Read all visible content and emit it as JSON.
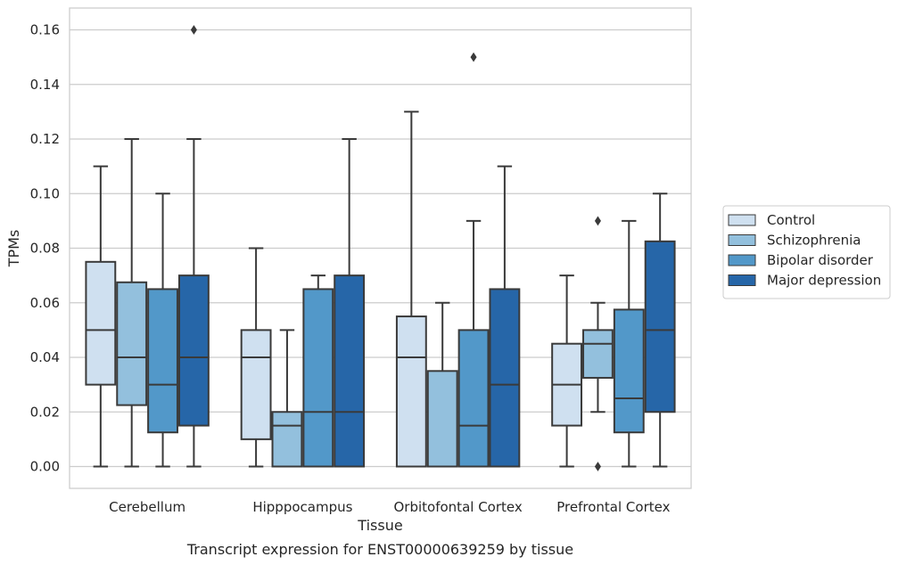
{
  "chart_data": {
    "type": "box",
    "xlabel": "Tissue",
    "ylabel": "TPMs",
    "caption": "Transcript expression for ENST00000639259 by tissue",
    "ylim": [
      -0.008,
      0.168
    ],
    "yticks": [
      "0.00",
      "0.02",
      "0.04",
      "0.06",
      "0.08",
      "0.10",
      "0.12",
      "0.14",
      "0.16"
    ],
    "ytick_values": [
      0,
      0.02,
      0.04,
      0.06,
      0.08,
      0.1,
      0.12,
      0.14,
      0.16
    ],
    "grid": "horizontal",
    "legend_position": "right-outside",
    "categories": [
      "Cerebellum",
      "Hipppocampus",
      "Orbitofontal Cortex",
      "Prefrontal Cortex"
    ],
    "series": [
      {
        "name": "Control",
        "color": "#cfe0f0",
        "boxes": [
          {
            "whislo": 0.0,
            "q1": 0.03,
            "med": 0.05,
            "q3": 0.075,
            "whishi": 0.11,
            "fliers": []
          },
          {
            "whislo": 0.0,
            "q1": 0.01,
            "med": 0.04,
            "q3": 0.05,
            "whishi": 0.08,
            "fliers": []
          },
          {
            "whislo": 0.0,
            "q1": 0.0,
            "med": 0.04,
            "q3": 0.055,
            "whishi": 0.13,
            "fliers": []
          },
          {
            "whislo": 0.0,
            "q1": 0.015,
            "med": 0.03,
            "q3": 0.045,
            "whishi": 0.07,
            "fliers": []
          }
        ]
      },
      {
        "name": "Schizophrenia",
        "color": "#93c0dd",
        "boxes": [
          {
            "whislo": 0.0,
            "q1": 0.0225,
            "med": 0.04,
            "q3": 0.0675,
            "whishi": 0.12,
            "fliers": []
          },
          {
            "whislo": 0.0,
            "q1": 0.0,
            "med": 0.015,
            "q3": 0.02,
            "whishi": 0.05,
            "fliers": []
          },
          {
            "whislo": 0.0,
            "q1": 0.0,
            "med": 0.0,
            "q3": 0.035,
            "whishi": 0.06,
            "fliers": []
          },
          {
            "whislo": 0.02,
            "q1": 0.0325,
            "med": 0.045,
            "q3": 0.05,
            "whishi": 0.06,
            "fliers": [
              0.0,
              0.09
            ]
          }
        ]
      },
      {
        "name": "Bipolar disorder",
        "color": "#5298c9",
        "boxes": [
          {
            "whislo": 0.0,
            "q1": 0.0125,
            "med": 0.03,
            "q3": 0.065,
            "whishi": 0.1,
            "fliers": []
          },
          {
            "whislo": 0.0,
            "q1": 0.0,
            "med": 0.02,
            "q3": 0.065,
            "whishi": 0.07,
            "fliers": []
          },
          {
            "whislo": 0.0,
            "q1": 0.0,
            "med": 0.015,
            "q3": 0.05,
            "whishi": 0.09,
            "fliers": [
              0.15
            ]
          },
          {
            "whislo": 0.0,
            "q1": 0.0125,
            "med": 0.025,
            "q3": 0.0575,
            "whishi": 0.09,
            "fliers": []
          }
        ]
      },
      {
        "name": "Major depression",
        "color": "#2666a8",
        "boxes": [
          {
            "whislo": 0.0,
            "q1": 0.015,
            "med": 0.04,
            "q3": 0.07,
            "whishi": 0.12,
            "fliers": [
              0.16
            ]
          },
          {
            "whislo": 0.0,
            "q1": 0.0,
            "med": 0.02,
            "q3": 0.07,
            "whishi": 0.12,
            "fliers": []
          },
          {
            "whislo": 0.0,
            "q1": 0.0,
            "med": 0.03,
            "q3": 0.065,
            "whishi": 0.11,
            "fliers": []
          },
          {
            "whislo": 0.0,
            "q1": 0.02,
            "med": 0.05,
            "q3": 0.0825,
            "whishi": 0.1,
            "fliers": []
          }
        ]
      }
    ]
  }
}
